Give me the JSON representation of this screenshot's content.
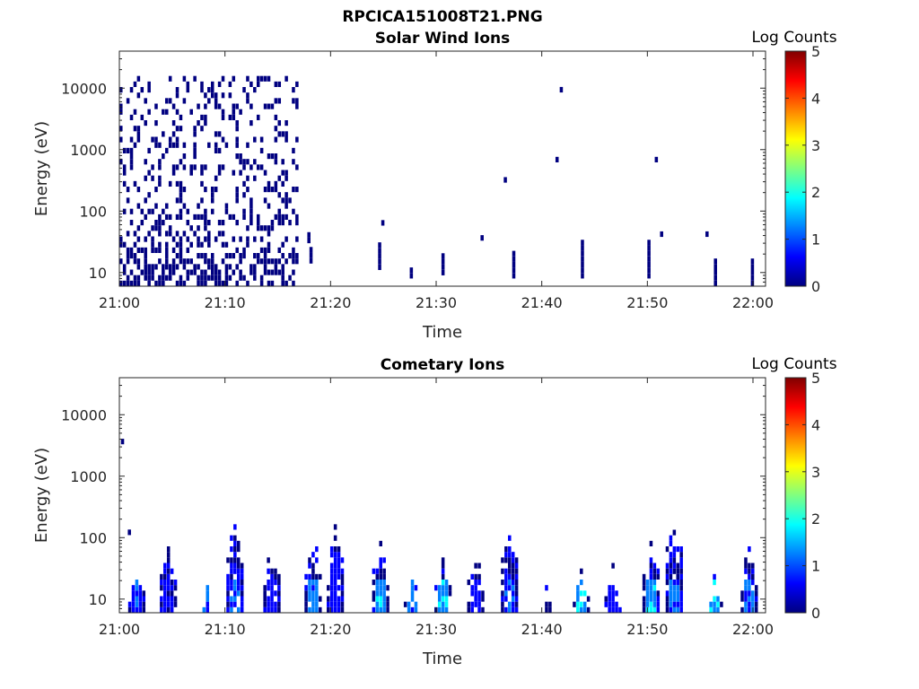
{
  "figure": {
    "title": "RPCICA151008T21.PNG"
  },
  "colors": {
    "ramp": [
      "#000080",
      "#0000ff",
      "#0080ff",
      "#00ffff",
      "#80ff80",
      "#ffff00",
      "#ff8000",
      "#ff0000",
      "#800000"
    ]
  },
  "chart_data": [
    {
      "type": "heatmap",
      "title": "Solar Wind Ions",
      "xlabel": "Time",
      "ylabel": "Energy (eV)",
      "y_scale": "log",
      "xlim": [
        "21:00",
        "22:00"
      ],
      "ylim": [
        6,
        40000
      ],
      "xticks": [
        "21:00",
        "21:10",
        "21:20",
        "21:30",
        "21:40",
        "21:50",
        "22:00"
      ],
      "yticks": [
        10,
        100,
        1000,
        10000
      ],
      "colorbar": {
        "label": "Log Counts",
        "range": [
          0,
          5
        ],
        "ticks": [
          0,
          1,
          2,
          3,
          4,
          5
        ]
      },
      "burst": {
        "t_start": 0,
        "t_end": 17,
        "e_min": 6,
        "e_max": 14000,
        "log_counts": 0
      },
      "events": [
        {
          "t": 17.8,
          "e_min": 30,
          "e_max": 45,
          "log_counts": 0
        },
        {
          "t": 18.0,
          "e_min": 14,
          "e_max": 22,
          "log_counts": 0
        },
        {
          "t": 24.5,
          "e_min": 11,
          "e_max": 30,
          "log_counts": 0
        },
        {
          "t": 24.8,
          "e_min": 58,
          "e_max": 68,
          "log_counts": 0
        },
        {
          "t": 27.5,
          "e_min": 8,
          "e_max": 12,
          "log_counts": 0
        },
        {
          "t": 30.5,
          "e_min": 9,
          "e_max": 18,
          "log_counts": 0
        },
        {
          "t": 34.2,
          "e_min": 33,
          "e_max": 40,
          "log_counts": 0
        },
        {
          "t": 36.4,
          "e_min": 290,
          "e_max": 340,
          "log_counts": 0
        },
        {
          "t": 37.2,
          "e_min": 8,
          "e_max": 22,
          "log_counts": 0
        },
        {
          "t": 41.3,
          "e_min": 620,
          "e_max": 730,
          "log_counts": 0
        },
        {
          "t": 41.7,
          "e_min": 8500,
          "e_max": 9800,
          "log_counts": 0
        },
        {
          "t": 43.7,
          "e_min": 8,
          "e_max": 28,
          "log_counts": 0
        },
        {
          "t": 50.0,
          "e_min": 8,
          "e_max": 28,
          "log_counts": 0
        },
        {
          "t": 50.7,
          "e_min": 620,
          "e_max": 730,
          "log_counts": 0
        },
        {
          "t": 51.2,
          "e_min": 38,
          "e_max": 46,
          "log_counts": 0
        },
        {
          "t": 55.5,
          "e_min": 38,
          "e_max": 46,
          "log_counts": 0
        },
        {
          "t": 56.3,
          "e_min": 6,
          "e_max": 16,
          "log_counts": 0
        },
        {
          "t": 59.8,
          "e_min": 6,
          "e_max": 16,
          "log_counts": 0
        }
      ]
    },
    {
      "type": "heatmap",
      "title": "Cometary Ions",
      "xlabel": "Time",
      "ylabel": "Energy (eV)",
      "y_scale": "log",
      "xlim": [
        "21:00",
        "22:00"
      ],
      "ylim": [
        6,
        40000
      ],
      "xticks": [
        "21:00",
        "21:10",
        "21:20",
        "21:30",
        "21:40",
        "21:50",
        "22:00"
      ],
      "yticks": [
        10,
        100,
        1000,
        10000
      ],
      "colorbar": {
        "label": "Log Counts",
        "range": [
          0,
          5
        ],
        "ticks": [
          0,
          1,
          2,
          3,
          4,
          5
        ]
      },
      "columns": [
        {
          "t": 1.5,
          "e_max": 38,
          "core": 0.9
        },
        {
          "t": 4.5,
          "e_max": 90,
          "core": 0.4
        },
        {
          "t": 8.2,
          "e_max": 18,
          "core": 1.2
        },
        {
          "t": 10.8,
          "e_max": 190,
          "core": 1.0
        },
        {
          "t": 14.3,
          "e_max": 90,
          "core": 0.5
        },
        {
          "t": 18.2,
          "e_max": 110,
          "core": 1.3
        },
        {
          "t": 20.3,
          "e_max": 190,
          "core": 0.8
        },
        {
          "t": 24.6,
          "e_max": 95,
          "core": 1.5
        },
        {
          "t": 27.6,
          "e_max": 38,
          "core": 1.2
        },
        {
          "t": 30.5,
          "e_max": 60,
          "core": 1.6
        },
        {
          "t": 33.6,
          "e_max": 60,
          "core": 0.6
        },
        {
          "t": 36.8,
          "e_max": 130,
          "core": 1.1
        },
        {
          "t": 40.3,
          "e_max": 20,
          "core": 0.3
        },
        {
          "t": 43.6,
          "e_max": 38,
          "core": 1.7
        },
        {
          "t": 46.6,
          "e_max": 38,
          "core": 0.6
        },
        {
          "t": 50.2,
          "e_max": 95,
          "core": 1.5
        },
        {
          "t": 52.4,
          "e_max": 240,
          "core": 1.2
        },
        {
          "t": 56.2,
          "e_max": 38,
          "core": 1.7
        },
        {
          "t": 59.5,
          "e_max": 90,
          "core": 1.1
        }
      ],
      "specks": [
        {
          "t": 0.15,
          "e": 3300,
          "log_counts": 0
        },
        {
          "t": 0.8,
          "e": 110,
          "log_counts": 0
        }
      ]
    }
  ]
}
